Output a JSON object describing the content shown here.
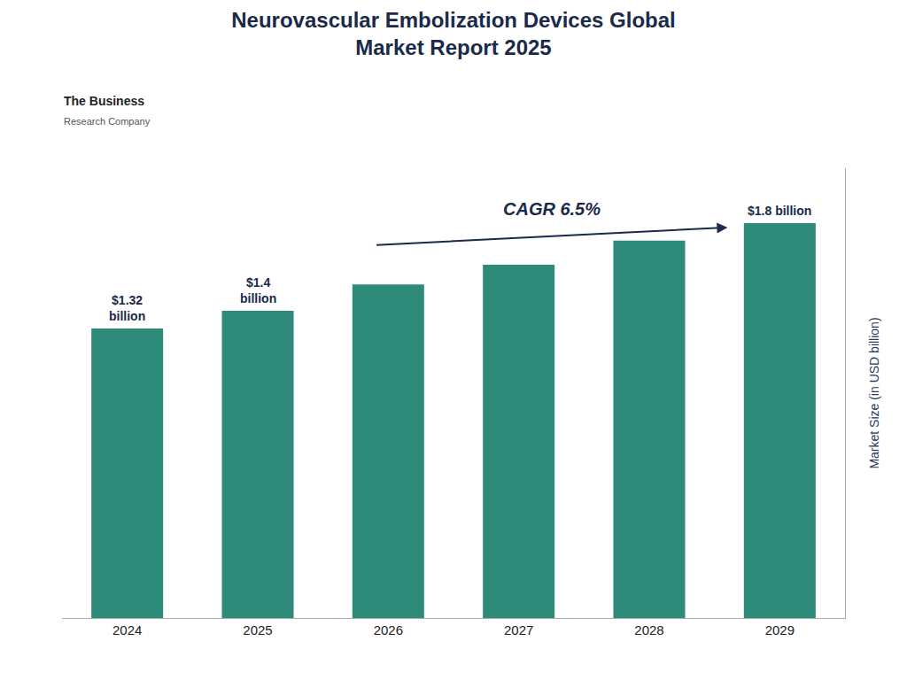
{
  "chart_data": {
    "type": "bar",
    "title": "Neurovascular Embolization Devices Global\nMarket Report 2025",
    "categories": [
      "2024",
      "2025",
      "2026",
      "2027",
      "2028",
      "2029"
    ],
    "values": [
      1.32,
      1.4,
      1.52,
      1.61,
      1.72,
      1.8
    ],
    "color": "#2e8b7a",
    "data_labels": true,
    "value_labels": [
      "$1.32\nbillion",
      "$1.4\nbillion",
      null,
      null,
      null,
      "$1.8 billion"
    ],
    "ylabel": "Market Size (in USD billion)",
    "ylim": [
      0,
      2.05
    ],
    "tick_labels": "x",
    "grid": false,
    "annotations": [
      {
        "text": "CAGR 6.5%"
      },
      {
        "text": "The Business"
      },
      {
        "text": "Research Company"
      }
    ]
  }
}
